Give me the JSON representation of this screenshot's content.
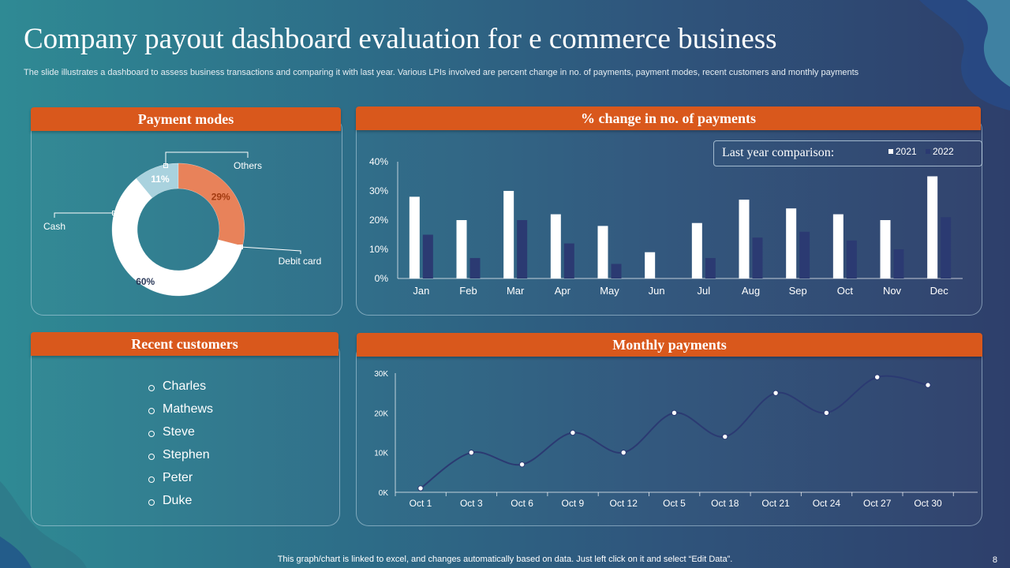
{
  "title": "Company payout dashboard evaluation for e commerce business",
  "subtitle": "The slide illustrates a dashboard to assess business transactions and comparing it with last year. Various LPIs involved are percent change in no. of payments, payment modes, recent customers and monthly payments",
  "panels": {
    "payment_modes": "Payment modes",
    "change_payments": "% change in no. of payments",
    "recent_customers": "Recent customers",
    "monthly_payments": "Monthly payments"
  },
  "legend": {
    "title": "Last year comparison:",
    "series": [
      {
        "name": "2021",
        "color": "#ffffff"
      },
      {
        "name": "2022",
        "color": "#2b3a72"
      }
    ]
  },
  "customers": [
    "Charles",
    "Mathews",
    "Steve",
    "Stephen",
    "Peter",
    "Duke"
  ],
  "footer": "This graph/chart is linked to excel,  and changes automatically based on data. Just left click on it and select “Edit Data”.",
  "page_number": "8",
  "colors": {
    "accent": "#d9581c",
    "debit": "#ffffff",
    "cash": "#e8825a",
    "others": "#a9d2de",
    "bar2022": "#2b3a72",
    "line": "#2b3a72"
  },
  "chart_data": [
    {
      "type": "pie",
      "labels": [
        "Others",
        "Cash",
        "Debit card"
      ],
      "values": [
        11,
        29,
        60
      ],
      "value_labels": [
        "11%",
        "29%",
        "60%"
      ]
    },
    {
      "type": "bar",
      "categories": [
        "Jan",
        "Feb",
        "Mar",
        "Apr",
        "May",
        "Jun",
        "Jul",
        "Aug",
        "Sep",
        "Oct",
        "Nov",
        "Dec"
      ],
      "series": [
        {
          "name": "2021",
          "values": [
            28,
            20,
            30,
            22,
            18,
            9,
            19,
            27,
            24,
            22,
            20,
            35
          ]
        },
        {
          "name": "2022",
          "values": [
            15,
            7,
            20,
            12,
            5,
            0,
            7,
            14,
            16,
            13,
            10,
            21
          ]
        }
      ],
      "ylim": [
        0,
        40
      ],
      "yticks": [
        "0%",
        "10%",
        "20%",
        "30%",
        "40%"
      ]
    },
    {
      "type": "line",
      "x": [
        "Oct 1",
        "Oct 3",
        "Oct 6",
        "Oct 9",
        "Oct 12",
        "Oct 5",
        "Oct 18",
        "Oct 21",
        "Oct 24",
        "Oct 27",
        "Oct 30"
      ],
      "values": [
        1000,
        10000,
        7000,
        15000,
        10000,
        20000,
        14000,
        25000,
        20000,
        29000,
        27000
      ],
      "ylim": [
        0,
        30000
      ],
      "yticks": [
        "0K",
        "10K",
        "20K",
        "30K"
      ]
    }
  ]
}
